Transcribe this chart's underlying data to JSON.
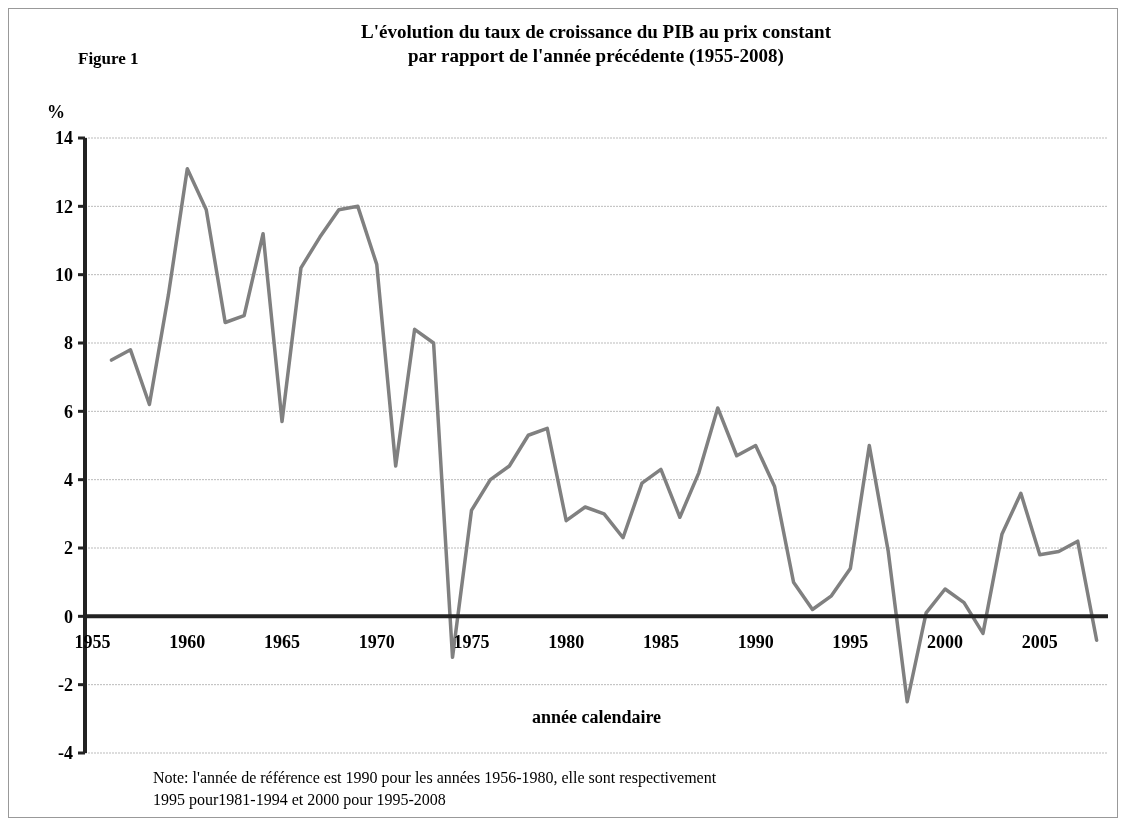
{
  "chart_data": {
    "type": "line",
    "title": "L'évolution du taux de croissance du PIB au prix constant\npar rapport de l'année précédente (1955-2008)",
    "ylabel": "%",
    "xlabel": "année calendaire",
    "annotations": [
      "Figure 1",
      "Note: l'année de référence est 1990 pour les années 1956-1980, elle sont respectivement\n1995 pour1981-1994 et 2000 pour 1995-2008"
    ],
    "x": [
      1956,
      1957,
      1958,
      1959,
      1960,
      1961,
      1962,
      1963,
      1964,
      1965,
      1966,
      1967,
      1968,
      1969,
      1970,
      1971,
      1972,
      1973,
      1974,
      1975,
      1976,
      1977,
      1978,
      1979,
      1980,
      1981,
      1982,
      1983,
      1984,
      1985,
      1986,
      1987,
      1988,
      1989,
      1990,
      1991,
      1992,
      1993,
      1994,
      1995,
      1996,
      1997,
      1998,
      1999,
      2000,
      2001,
      2002,
      2003,
      2004,
      2005,
      2006,
      2007,
      2008
    ],
    "series": [
      {
        "color": "#808080",
        "values": [
          7.5,
          7.8,
          6.2,
          9.4,
          13.1,
          11.9,
          8.6,
          8.8,
          11.2,
          5.7,
          10.2,
          11.1,
          11.9,
          12.0,
          10.3,
          4.4,
          8.4,
          8.0,
          -1.2,
          3.1,
          4.0,
          4.4,
          5.3,
          5.5,
          2.8,
          3.2,
          3.0,
          2.3,
          3.9,
          4.3,
          2.9,
          4.2,
          6.1,
          4.7,
          5.0,
          3.8,
          1.0,
          0.2,
          0.6,
          1.4,
          5.0,
          1.9,
          -2.5,
          0.1,
          0.8,
          0.4,
          -0.5,
          2.4,
          3.6,
          1.8,
          1.9,
          2.2,
          -0.7
        ]
      }
    ],
    "xlim": [
      1954.6,
      2008.6
    ],
    "xticks": [
      1955,
      1960,
      1965,
      1970,
      1975,
      1980,
      1985,
      1990,
      1995,
      2000,
      2005
    ],
    "ylim": [
      -4,
      14
    ],
    "yticks": [
      -4,
      -2,
      0,
      2,
      4,
      6,
      8,
      10,
      12,
      14
    ],
    "grid": "y",
    "marker": "none",
    "line_style": "solid"
  }
}
